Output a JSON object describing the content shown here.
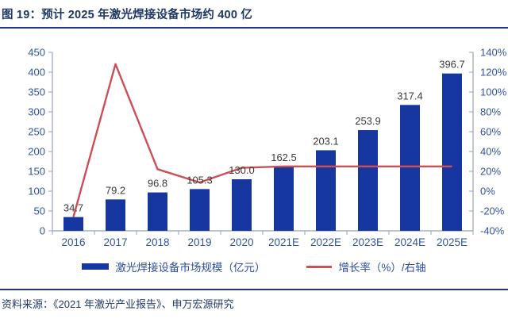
{
  "title": "图 19：预计 2025 年激光焊接设备市场约 400 亿",
  "source": "资料来源：《2021 年激光产业报告》、申万宏源研究",
  "colors": {
    "bar": "#16379F",
    "line": "#CB4F56",
    "title_text": "#1F3864",
    "axis_text": "#33549D",
    "data_label_text": "#3A3A3A",
    "axis_line": "#98A2B6"
  },
  "legend": [
    {
      "label": "激光焊接设备市场规模（亿元）",
      "marker": "bar-swatch"
    },
    {
      "label": "增长率（%）/右轴",
      "marker": "line-swatch"
    }
  ],
  "chart_data": {
    "type": "bar",
    "subtype": "bar+line dual axis",
    "categories": [
      "2016",
      "2017",
      "2018",
      "2019",
      "2020",
      "2021E",
      "2022E",
      "2023E",
      "2024E",
      "2025E"
    ],
    "series": [
      {
        "name": "激光焊接设备市场规模（亿元）",
        "type": "bar",
        "axis": "left",
        "values": [
          34.7,
          79.2,
          96.8,
          105.3,
          130.0,
          162.5,
          203.1,
          253.9,
          317.4,
          396.7
        ]
      },
      {
        "name": "增长率（%）/右轴",
        "type": "line",
        "axis": "right",
        "values": [
          -26,
          128.2,
          22.2,
          8.8,
          23.5,
          25,
          25,
          25,
          25,
          25
        ]
      }
    ],
    "bar_labels": [
      "34.7",
      "79.2",
      "96.8",
      "105.3",
      "130.0",
      "162.5",
      "203.1",
      "253.9",
      "317.4",
      "396.7"
    ],
    "left_axis": {
      "min": 0,
      "max": 450,
      "step": 50
    },
    "right_axis": {
      "min": -40,
      "max": 140,
      "step": 20,
      "suffix": "%"
    },
    "grid": false,
    "legend_position": "bottom",
    "title": "预计 2025 年激光焊接设备市场约 400 亿"
  }
}
